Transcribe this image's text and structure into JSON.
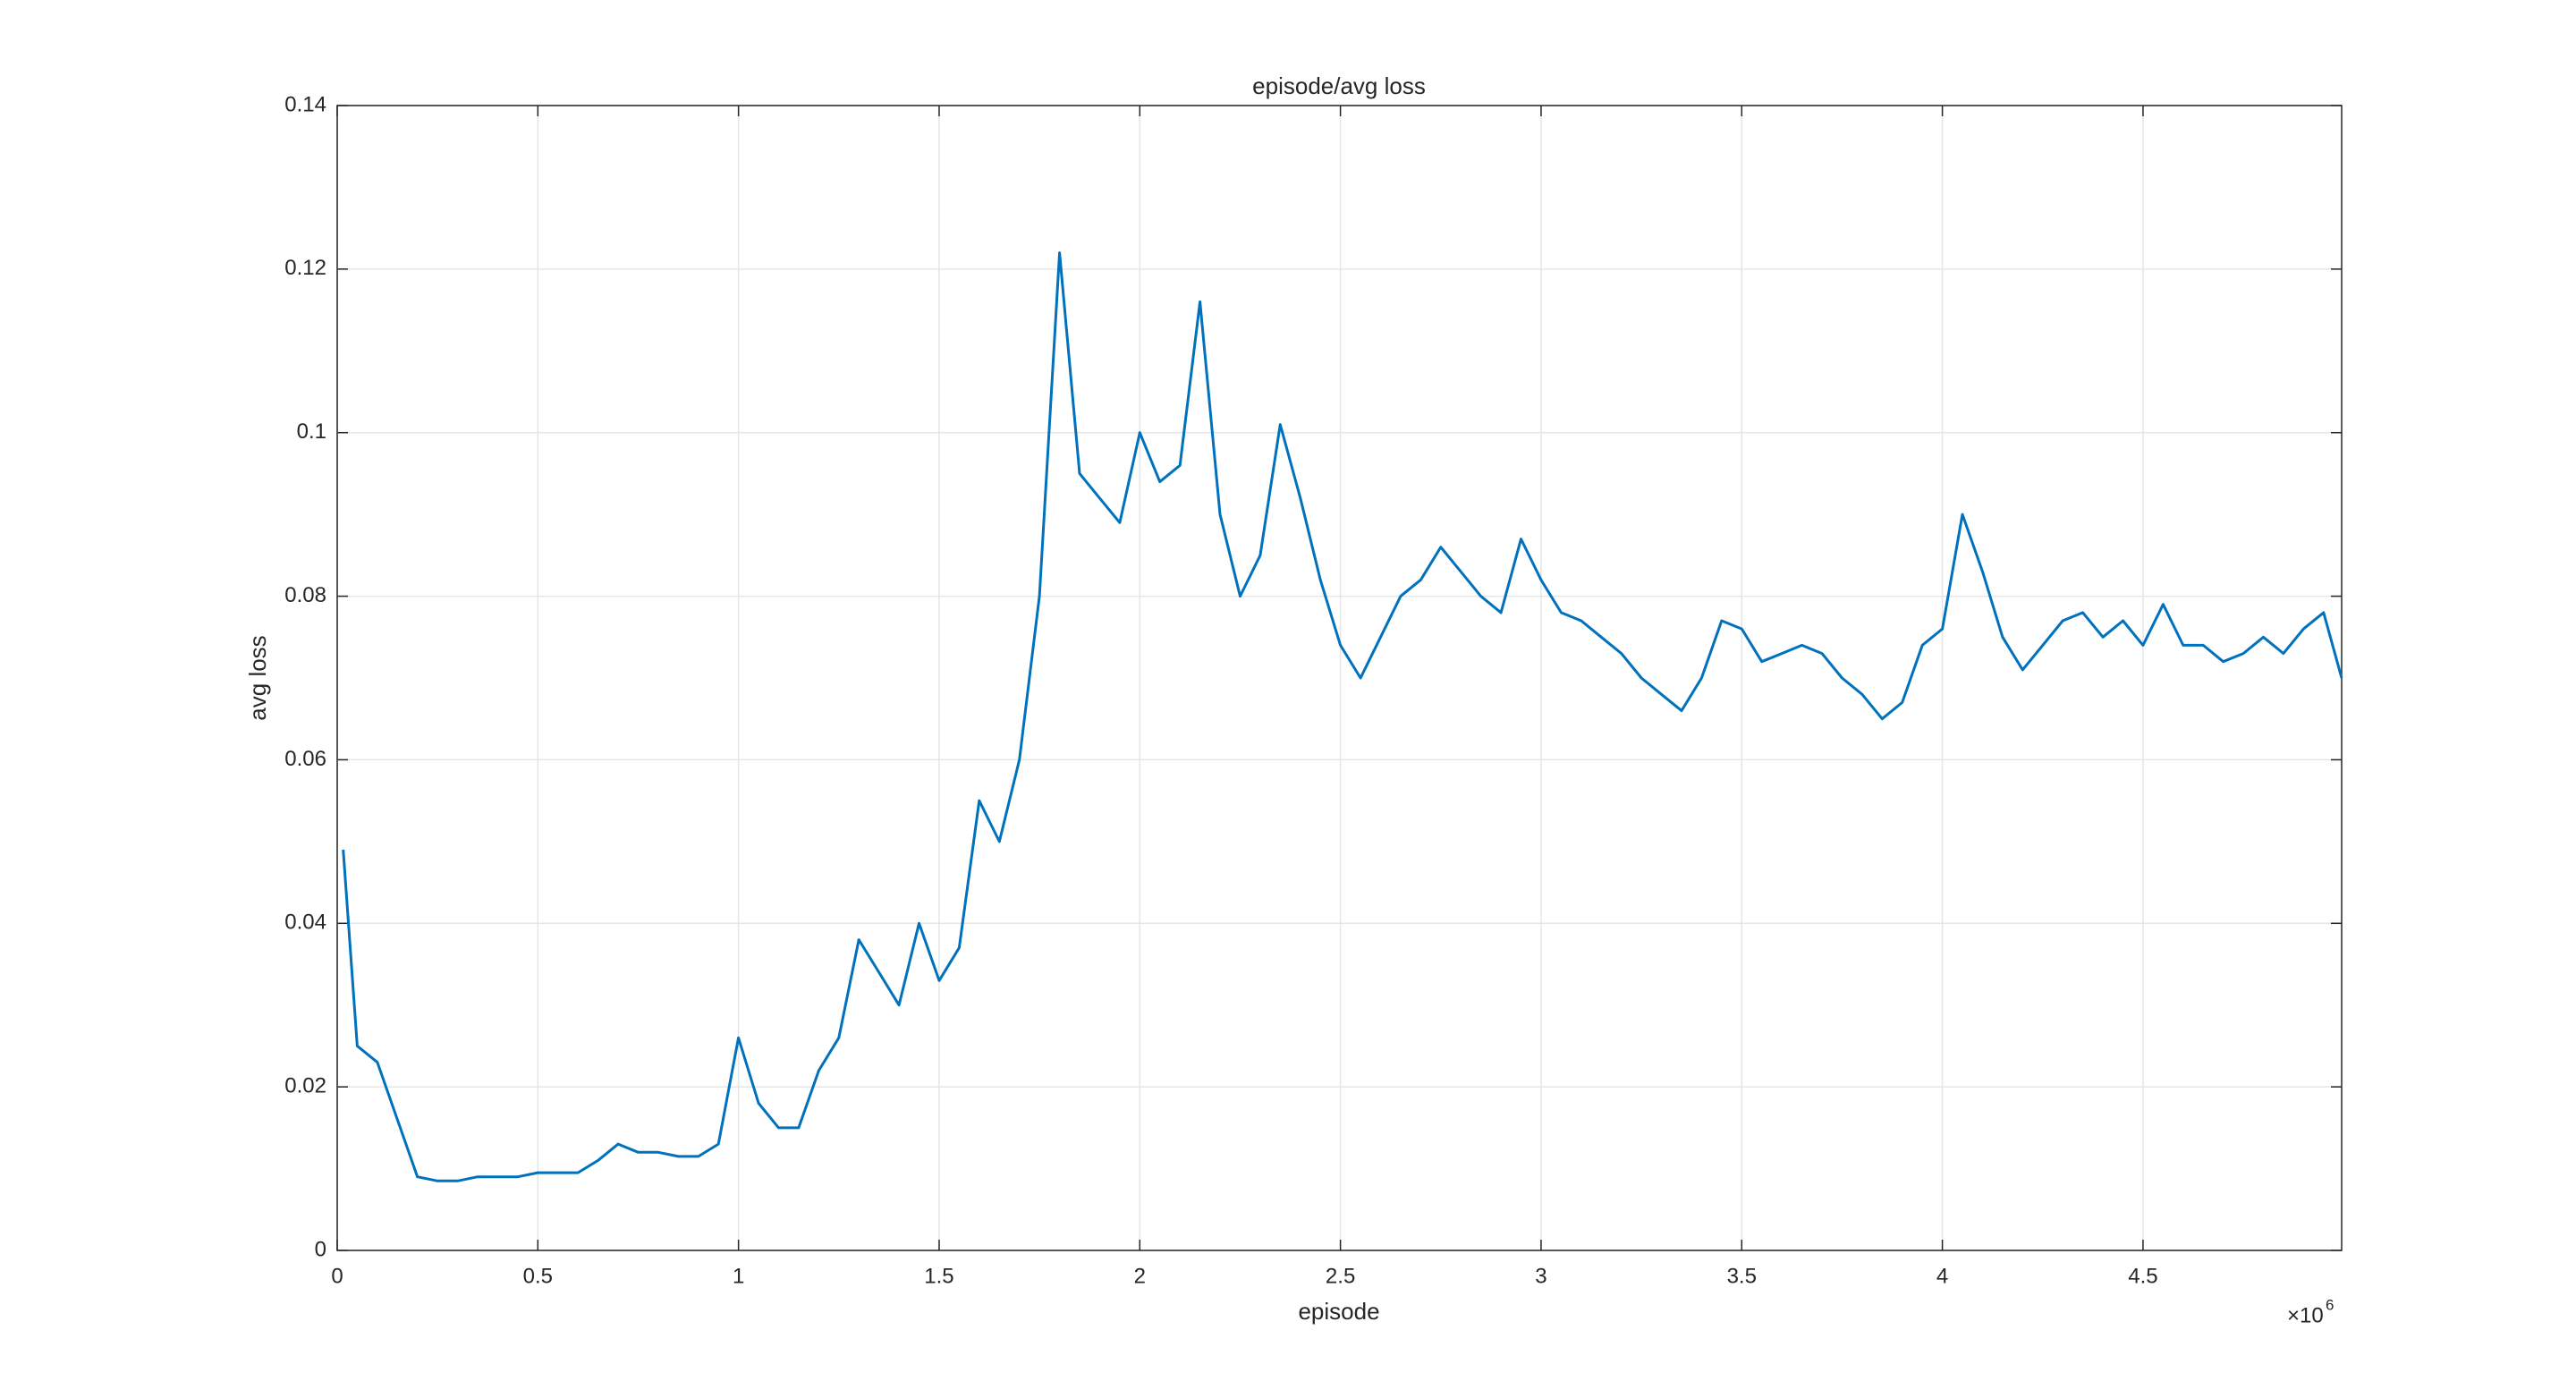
{
  "chart_data": {
    "type": "line",
    "title": "episode/avg loss",
    "x_label": "episode",
    "y_label": "avg loss",
    "x_offset_text": "×10",
    "x_offset_power": "6",
    "x": [
      0.015,
      0.05,
      0.1,
      0.15,
      0.2,
      0.25,
      0.3,
      0.35,
      0.4,
      0.45,
      0.5,
      0.55,
      0.6,
      0.65,
      0.7,
      0.75,
      0.8,
      0.85,
      0.9,
      0.95,
      1.0,
      1.05,
      1.1,
      1.15,
      1.2,
      1.25,
      1.3,
      1.35,
      1.4,
      1.45,
      1.5,
      1.55,
      1.6,
      1.65,
      1.7,
      1.75,
      1.8,
      1.85,
      1.9,
      1.95,
      2.0,
      2.05,
      2.1,
      2.15,
      2.2,
      2.25,
      2.3,
      2.35,
      2.4,
      2.45,
      2.5,
      2.55,
      2.6,
      2.65,
      2.7,
      2.75,
      2.8,
      2.85,
      2.9,
      2.95,
      3.0,
      3.05,
      3.1,
      3.15,
      3.2,
      3.25,
      3.3,
      3.35,
      3.4,
      3.45,
      3.5,
      3.55,
      3.6,
      3.65,
      3.7,
      3.75,
      3.8,
      3.85,
      3.9,
      3.95,
      4.0,
      4.05,
      4.1,
      4.15,
      4.2,
      4.25,
      4.3,
      4.35,
      4.4,
      4.45,
      4.5,
      4.55,
      4.6,
      4.65,
      4.7,
      4.75,
      4.8,
      4.85,
      4.9,
      4.95,
      4.995
    ],
    "series": [
      {
        "name": "avg loss",
        "color": "#0072bd",
        "values": [
          0.049,
          0.025,
          0.023,
          0.016,
          0.009,
          0.0085,
          0.0085,
          0.009,
          0.009,
          0.009,
          0.0095,
          0.0095,
          0.0095,
          0.011,
          0.013,
          0.012,
          0.012,
          0.0115,
          0.0115,
          0.013,
          0.026,
          0.018,
          0.015,
          0.015,
          0.022,
          0.026,
          0.038,
          0.034,
          0.03,
          0.04,
          0.033,
          0.037,
          0.055,
          0.05,
          0.06,
          0.08,
          0.122,
          0.095,
          0.092,
          0.089,
          0.1,
          0.094,
          0.096,
          0.116,
          0.09,
          0.08,
          0.085,
          0.101,
          0.092,
          0.082,
          0.074,
          0.07,
          0.075,
          0.08,
          0.082,
          0.086,
          0.083,
          0.08,
          0.078,
          0.087,
          0.082,
          0.078,
          0.077,
          0.075,
          0.073,
          0.07,
          0.068,
          0.066,
          0.07,
          0.077,
          0.076,
          0.072,
          0.073,
          0.074,
          0.073,
          0.07,
          0.068,
          0.065,
          0.067,
          0.074,
          0.076,
          0.09,
          0.083,
          0.075,
          0.071,
          0.074,
          0.077,
          0.078,
          0.075,
          0.077,
          0.074,
          0.079,
          0.074,
          0.074,
          0.072,
          0.073,
          0.075,
          0.073,
          0.076,
          0.078,
          0.07
        ]
      }
    ],
    "xlim": [
      0,
      4.995
    ],
    "ylim": [
      0,
      0.14
    ],
    "xticks": [
      0,
      0.5,
      1,
      1.5,
      2,
      2.5,
      3,
      3.5,
      4,
      4.5
    ],
    "yticks": [
      0,
      0.02,
      0.04,
      0.06,
      0.08,
      0.1,
      0.12,
      0.14
    ],
    "grid": true
  }
}
